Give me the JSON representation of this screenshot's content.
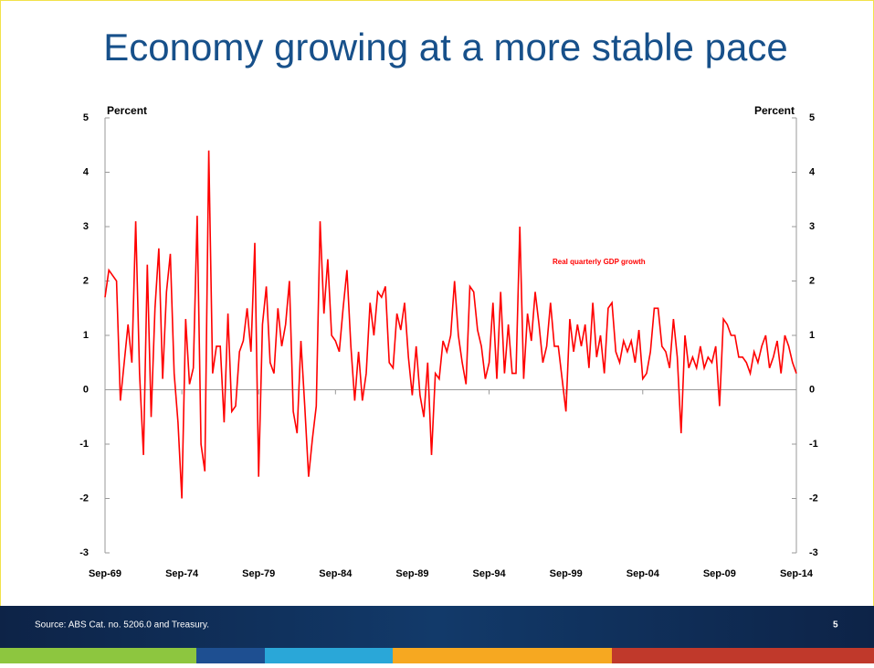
{
  "chart_data": {
    "type": "line",
    "title": "Economy growing at a more stable pace",
    "y_label": "Percent",
    "y2_label": "Percent",
    "annotation": "Real quarterly GDP growth",
    "source": "Source: ABS Cat. no. 5206.0 and Treasury.",
    "page_number": "5",
    "categories": [
      "Sep-69",
      null,
      null,
      null,
      null,
      null,
      null,
      null,
      null,
      null,
      null,
      null,
      null,
      null,
      null,
      null,
      null,
      null,
      null,
      null,
      "Sep-74",
      null,
      null,
      null,
      null,
      null,
      null,
      null,
      null,
      null,
      null,
      null,
      null,
      null,
      null,
      null,
      null,
      null,
      null,
      null,
      "Sep-79",
      null,
      null,
      null,
      null,
      null,
      null,
      null,
      null,
      null,
      null,
      null,
      null,
      null,
      null,
      null,
      null,
      null,
      null,
      null,
      "Sep-84",
      null,
      null,
      null,
      null,
      null,
      null,
      null,
      null,
      null,
      null,
      null,
      null,
      null,
      null,
      null,
      null,
      null,
      null,
      null,
      "Sep-89",
      null,
      null,
      null,
      null,
      null,
      null,
      null,
      null,
      null,
      null,
      null,
      null,
      null,
      null,
      null,
      null,
      null,
      null,
      null,
      "Sep-94",
      null,
      null,
      null,
      null,
      null,
      null,
      null,
      null,
      null,
      null,
      null,
      null,
      null,
      null,
      null,
      null,
      null,
      null,
      null,
      "Sep-99",
      null,
      null,
      null,
      null,
      null,
      null,
      null,
      null,
      null,
      null,
      null,
      null,
      null,
      null,
      null,
      null,
      null,
      null,
      null,
      "Sep-04",
      null,
      null,
      null,
      null,
      null,
      null,
      null,
      null,
      null,
      null,
      null,
      null,
      null,
      null,
      null,
      null,
      null,
      null,
      null,
      "Sep-09",
      null,
      null,
      null,
      null,
      null,
      null,
      null,
      null,
      null,
      null,
      null,
      null,
      null,
      null,
      null,
      null,
      null,
      null,
      null,
      "Sep-14"
    ],
    "series": [
      {
        "name": "Real quarterly GDP growth",
        "color": "#ff0000",
        "values": [
          1.7,
          2.2,
          2.1,
          2.0,
          -0.2,
          0.5,
          1.2,
          0.5,
          3.1,
          0.3,
          -1.2,
          2.3,
          -0.5,
          1.5,
          2.6,
          0.2,
          1.8,
          2.5,
          0.3,
          -0.6,
          -2.0,
          1.3,
          0.1,
          0.4,
          3.2,
          -1.0,
          -1.5,
          4.4,
          0.3,
          0.8,
          0.8,
          -0.6,
          1.4,
          -0.4,
          -0.3,
          0.7,
          0.9,
          1.5,
          0.7,
          2.7,
          -1.6,
          1.2,
          1.9,
          0.5,
          0.3,
          1.5,
          0.8,
          1.2,
          2.0,
          -0.4,
          -0.8,
          0.9,
          -0.3,
          -1.6,
          -0.9,
          -0.3,
          3.1,
          1.4,
          2.4,
          1.0,
          0.9,
          0.7,
          1.5,
          2.2,
          0.8,
          -0.2,
          0.7,
          -0.2,
          0.3,
          1.6,
          1.0,
          1.8,
          1.7,
          1.9,
          0.5,
          0.4,
          1.4,
          1.1,
          1.6,
          0.6,
          -0.1,
          0.8,
          -0.1,
          -0.5,
          0.5,
          -1.2,
          0.3,
          0.2,
          0.9,
          0.7,
          1.0,
          2.0,
          1.0,
          0.5,
          0.1,
          1.9,
          1.8,
          1.1,
          0.8,
          0.2,
          0.5,
          1.6,
          0.2,
          1.8,
          0.3,
          1.2,
          0.3,
          0.3,
          3.0,
          0.2,
          1.4,
          0.9,
          1.8,
          1.2,
          0.5,
          0.8,
          1.6,
          0.8,
          0.8,
          0.2,
          -0.4,
          1.3,
          0.7,
          1.2,
          0.8,
          1.2,
          0.4,
          1.6,
          0.6,
          1.0,
          0.3,
          1.5,
          1.6,
          0.7,
          0.5,
          0.9,
          0.7,
          0.9,
          0.5,
          1.1,
          0.2,
          0.3,
          0.7,
          1.5,
          1.5,
          0.8,
          0.7,
          0.4,
          1.3,
          0.6,
          -0.8,
          1.0,
          0.4,
          0.6,
          0.4,
          0.8,
          0.4,
          0.6,
          0.5,
          0.8,
          -0.3,
          1.3,
          1.2,
          1.0,
          1.0,
          0.6,
          0.6,
          0.5,
          0.3,
          0.7,
          0.5,
          0.8,
          1.0,
          0.4,
          0.6,
          0.9,
          0.3,
          1.0,
          0.8,
          0.5,
          0.3
        ]
      }
    ],
    "ylim": [
      -3,
      5
    ],
    "yticks": [
      -3,
      -2,
      -1,
      0,
      1,
      2,
      3,
      4,
      5
    ],
    "y2lim": [
      -3,
      5
    ],
    "y2ticks": [
      -3,
      -2,
      -1,
      0,
      1,
      2,
      3,
      4,
      5
    ]
  }
}
